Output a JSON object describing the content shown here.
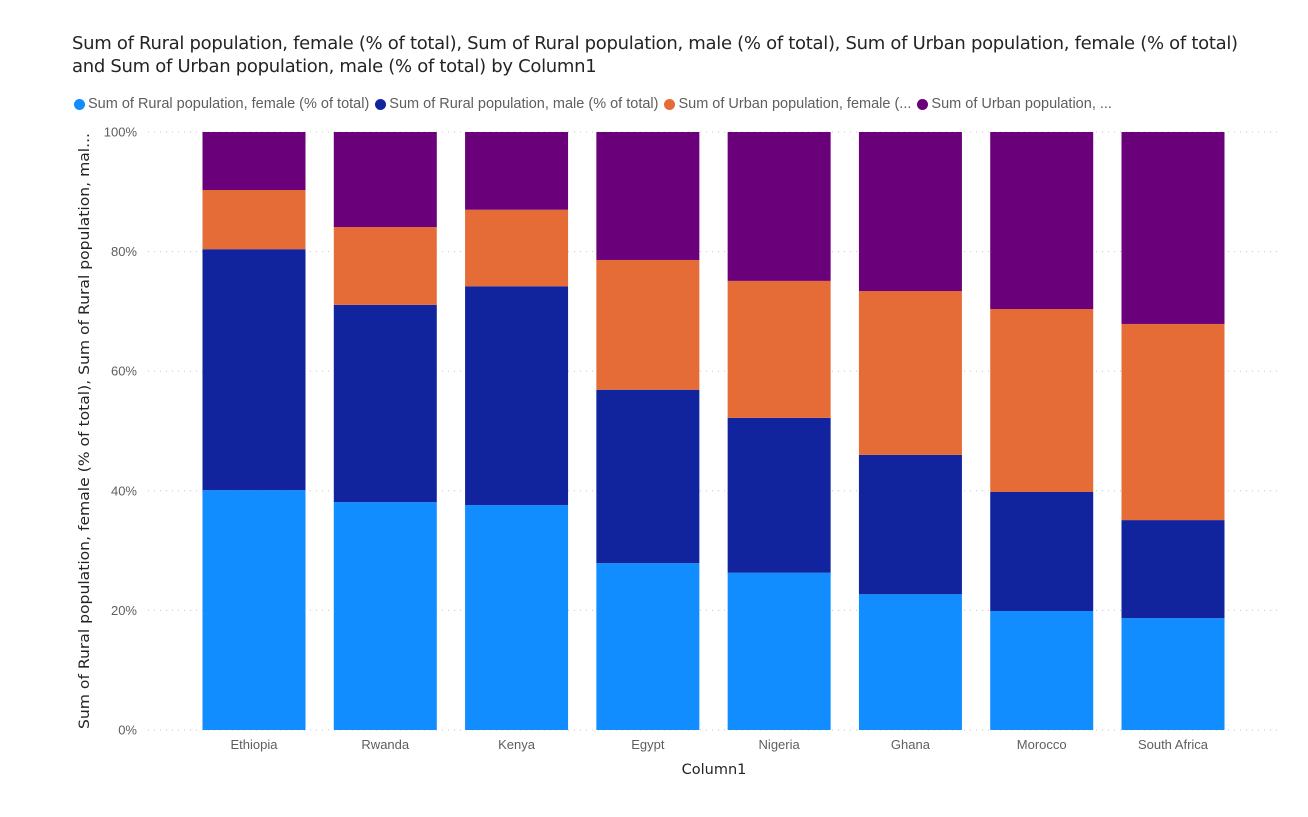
{
  "chart_data": {
    "type": "bar",
    "stacked": "100%",
    "title": "Sum of Rural population, female (% of total), Sum of Rural population, male (% of total), Sum of Urban population, female (% of total) and Sum of Urban population, male (% of total) by Column1",
    "xlabel": "Column1",
    "ylabel": "Sum of Rural population, female (% of total), Sum of Rural population, mal...",
    "ylim": [
      0,
      100
    ],
    "yticks": [
      "0%",
      "20%",
      "40%",
      "60%",
      "80%",
      "100%"
    ],
    "ytick_values": [
      0,
      20,
      40,
      60,
      80,
      100
    ],
    "grid": true,
    "legend_position": "top-left",
    "categories": [
      "Ethiopia",
      "Rwanda",
      "Kenya",
      "Egypt",
      "Nigeria",
      "Ghana",
      "Morocco",
      "South Africa"
    ],
    "series": [
      {
        "name": "Sum of Rural population, female (% of total)",
        "legend_label": "Sum of Rural population, female (% of total)",
        "color": "#118DFF",
        "values": [
          40.1,
          38.1,
          37.6,
          27.9,
          26.3,
          22.7,
          19.9,
          18.7
        ]
      },
      {
        "name": "Sum of Rural population, male (% of total)",
        "legend_label": "Sum of Rural population, male (% of total)",
        "color": "#12239E",
        "values": [
          40.3,
          33.0,
          36.6,
          29.0,
          25.9,
          23.3,
          19.9,
          16.4
        ]
      },
      {
        "name": "Sum of Urban population, female (% of total)",
        "legend_label": "Sum of Urban population, female (...",
        "color": "#E66C37",
        "values": [
          9.9,
          13.0,
          12.8,
          21.7,
          22.9,
          27.4,
          30.6,
          32.8
        ]
      },
      {
        "name": "Sum of Urban population, male (% of total)",
        "legend_label": "Sum of Urban population, ...",
        "color": "#6B007B",
        "values": [
          9.7,
          15.9,
          13.0,
          21.4,
          24.9,
          26.6,
          29.6,
          32.1
        ]
      }
    ]
  }
}
